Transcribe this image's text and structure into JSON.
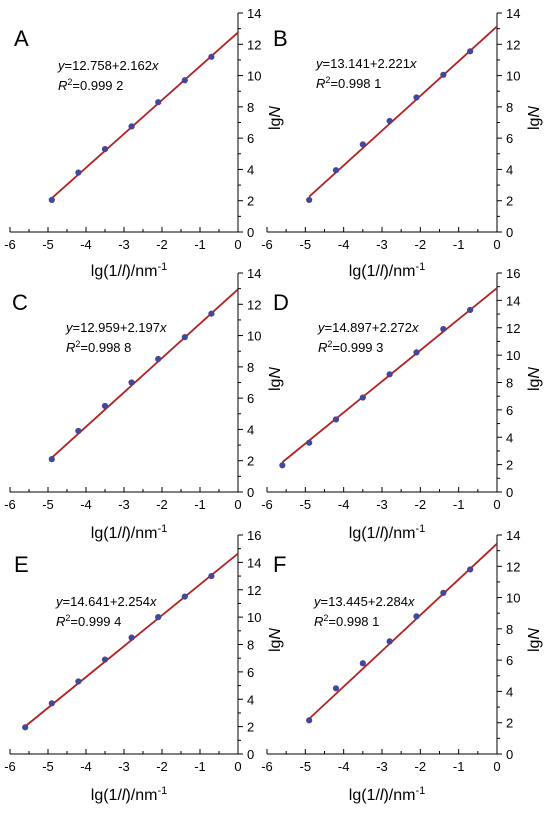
{
  "colors": {
    "fit_line": "#b22222",
    "point_fill": "#3a4aa8",
    "point_stroke": "#5a3a70"
  },
  "chart_data": [
    {
      "type": "scatter",
      "panel": "A",
      "xlabel_main": "lg(1/",
      "xlabel_var": "l",
      "xlabel_unit": ")/nm",
      "xlabel_exp": "-1",
      "ylabel_main": "lg",
      "ylabel_var": "N",
      "xlim": [
        -6,
        0
      ],
      "ylim": [
        0,
        14
      ],
      "x_ticks": [
        "-6",
        "-5",
        "-4",
        "-3",
        "-2",
        "-1",
        "0"
      ],
      "y_ticks": [
        "0",
        "2",
        "4",
        "6",
        "8",
        "10",
        "12",
        "14"
      ],
      "eq_y": "y",
      "eq_rhs": "=12.758+2.162",
      "eq_x": "x",
      "r2_label": "R",
      "r2_exp": "2",
      "r2_value": "=0.999 2",
      "fit": {
        "intercept": 12.758,
        "slope": 2.162,
        "x_start": -4.9,
        "x_end": 0
      },
      "points": {
        "x": [
          -4.9,
          -4.2,
          -3.5,
          -2.8,
          -2.1,
          -1.4,
          -0.7
        ],
        "y": [
          2.05,
          3.8,
          5.3,
          6.75,
          8.3,
          9.7,
          11.2
        ]
      }
    },
    {
      "type": "scatter",
      "panel": "B",
      "xlabel_main": "lg(1/",
      "xlabel_var": "l",
      "xlabel_unit": ")/nm",
      "xlabel_exp": "-1",
      "ylabel_main": "lg",
      "ylabel_var": "N",
      "xlim": [
        -6,
        0
      ],
      "ylim": [
        0,
        14
      ],
      "x_ticks": [
        "-6",
        "-5",
        "-4",
        "-3",
        "-2",
        "-1",
        "0"
      ],
      "y_ticks": [
        "0",
        "2",
        "4",
        "6",
        "8",
        "10",
        "12",
        "14"
      ],
      "eq_y": "y",
      "eq_rhs": "=13.141+2.221",
      "eq_x": "x",
      "r2_label": "R",
      "r2_exp": "2",
      "r2_value": "=0.998 1",
      "fit": {
        "intercept": 13.141,
        "slope": 2.221,
        "x_start": -4.9,
        "x_end": 0
      },
      "points": {
        "x": [
          -4.9,
          -4.2,
          -3.5,
          -2.8,
          -2.1,
          -1.4,
          -0.7
        ],
        "y": [
          2.05,
          3.95,
          5.6,
          7.1,
          8.6,
          10.05,
          11.55
        ]
      }
    },
    {
      "type": "scatter",
      "panel": "C",
      "xlabel_main": "lg(1/",
      "xlabel_var": "l",
      "xlabel_unit": ")/nm",
      "xlabel_exp": "-1",
      "ylabel_main": "lg",
      "ylabel_var": "N",
      "xlim": [
        -6,
        0
      ],
      "ylim": [
        0,
        14
      ],
      "x_ticks": [
        "-6",
        "-5",
        "-4",
        "-3",
        "-2",
        "-1",
        "0"
      ],
      "y_ticks": [
        "0",
        "2",
        "4",
        "6",
        "8",
        "10",
        "12",
        "14"
      ],
      "eq_y": "y",
      "eq_rhs": "=12.959+2.197",
      "eq_x": "x",
      "r2_label": "R",
      "r2_exp": "2",
      "r2_value": "=0.998 8",
      "fit": {
        "intercept": 12.959,
        "slope": 2.197,
        "x_start": -4.9,
        "x_end": 0
      },
      "points": {
        "x": [
          -4.9,
          -4.2,
          -3.5,
          -2.8,
          -2.1,
          -1.4,
          -0.7
        ],
        "y": [
          2.1,
          3.9,
          5.5,
          7.0,
          8.5,
          9.9,
          11.4
        ]
      }
    },
    {
      "type": "scatter",
      "panel": "D",
      "xlabel_main": "lg(1/",
      "xlabel_var": "l",
      "xlabel_unit": ")/nm",
      "xlabel_exp": "-1",
      "ylabel_main": "lg",
      "ylabel_var": "N",
      "xlim": [
        -6,
        0
      ],
      "ylim": [
        0,
        16
      ],
      "x_ticks": [
        "-6",
        "-5",
        "-4",
        "-3",
        "-2",
        "-1",
        "0"
      ],
      "y_ticks": [
        "0",
        "2",
        "4",
        "6",
        "8",
        "10",
        "12",
        "14",
        "16"
      ],
      "eq_y": "y",
      "eq_rhs": "=14.897+2.272",
      "eq_x": "x",
      "r2_label": "R",
      "r2_exp": "2",
      "r2_value": "=0.999 3",
      "fit": {
        "intercept": 14.897,
        "slope": 2.272,
        "x_start": -5.6,
        "x_end": 0
      },
      "points": {
        "x": [
          -5.6,
          -4.9,
          -4.2,
          -3.5,
          -2.8,
          -2.1,
          -1.4,
          -0.7
        ],
        "y": [
          1.95,
          3.6,
          5.3,
          6.9,
          8.6,
          10.2,
          11.9,
          13.3
        ]
      }
    },
    {
      "type": "scatter",
      "panel": "E",
      "xlabel_main": "lg(1/",
      "xlabel_var": "l",
      "xlabel_unit": ")/nm",
      "xlabel_exp": "-1",
      "ylabel_main": "lg",
      "ylabel_var": "N",
      "xlim": [
        -6,
        0
      ],
      "ylim": [
        0,
        16
      ],
      "x_ticks": [
        "-6",
        "-5",
        "-4",
        "-3",
        "-2",
        "-1",
        "0"
      ],
      "y_ticks": [
        "0",
        "2",
        "4",
        "6",
        "8",
        "10",
        "12",
        "14",
        "16"
      ],
      "eq_y": "y",
      "eq_rhs": "=14.641+2.254",
      "eq_x": "x",
      "r2_label": "R",
      "r2_exp": "2",
      "r2_value": "=0.999 4",
      "fit": {
        "intercept": 14.641,
        "slope": 2.254,
        "x_start": -5.6,
        "x_end": 0
      },
      "points": {
        "x": [
          -5.6,
          -4.9,
          -4.2,
          -3.5,
          -2.8,
          -2.1,
          -1.4,
          -0.7
        ],
        "y": [
          1.95,
          3.7,
          5.3,
          6.9,
          8.5,
          10.0,
          11.5,
          13.0
        ]
      }
    },
    {
      "type": "scatter",
      "panel": "F",
      "xlabel_main": "lg(1/",
      "xlabel_var": "l",
      "xlabel_unit": ")/nm",
      "xlabel_exp": "-1",
      "ylabel_main": "lg",
      "ylabel_var": "N",
      "xlim": [
        -6,
        0
      ],
      "ylim": [
        0,
        14
      ],
      "x_ticks": [
        "-6",
        "-5",
        "-4",
        "-3",
        "-2",
        "-1",
        "0"
      ],
      "y_ticks": [
        "0",
        "2",
        "4",
        "6",
        "8",
        "10",
        "12",
        "14"
      ],
      "eq_y": "y",
      "eq_rhs": "=13.445+2.284",
      "eq_x": "x",
      "r2_label": "R",
      "r2_exp": "2",
      "r2_value": "=0.998 1",
      "fit": {
        "intercept": 13.445,
        "slope": 2.284,
        "x_start": -4.9,
        "x_end": 0
      },
      "points": {
        "x": [
          -4.9,
          -4.2,
          -3.5,
          -2.8,
          -2.1,
          -1.4,
          -0.7
        ],
        "y": [
          2.15,
          4.2,
          5.8,
          7.2,
          8.8,
          10.3,
          11.8
        ]
      }
    }
  ]
}
